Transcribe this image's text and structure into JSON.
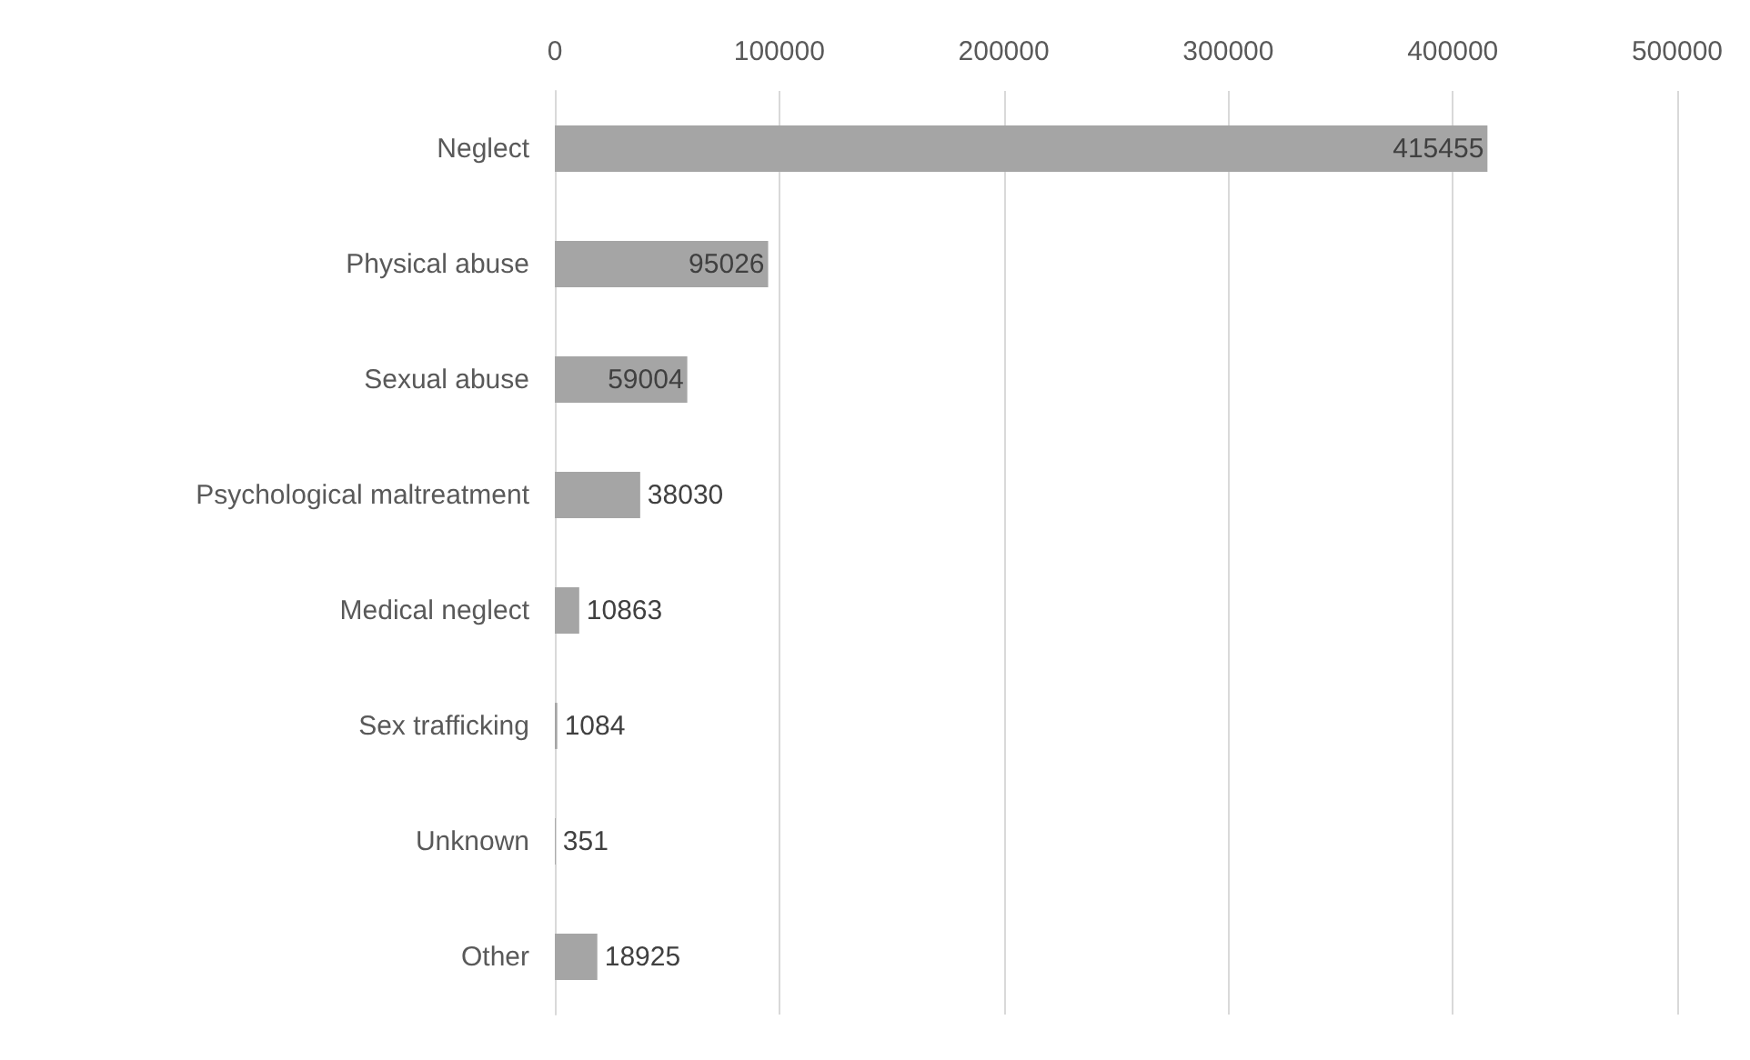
{
  "chart_data": {
    "type": "bar",
    "orientation": "horizontal",
    "categories": [
      "Neglect",
      "Physical abuse",
      "Sexual abuse",
      "Psychological maltreatment",
      "Medical neglect",
      "Sex trafficking",
      "Unknown",
      "Other"
    ],
    "values": [
      415455,
      95026,
      59004,
      38030,
      10863,
      1084,
      351,
      18925
    ],
    "color": "#a5a5a5",
    "xlim": [
      0,
      500000
    ],
    "xticks": [
      0,
      100000,
      200000,
      300000,
      400000,
      500000
    ],
    "grid": "x",
    "data_labels": true
  }
}
